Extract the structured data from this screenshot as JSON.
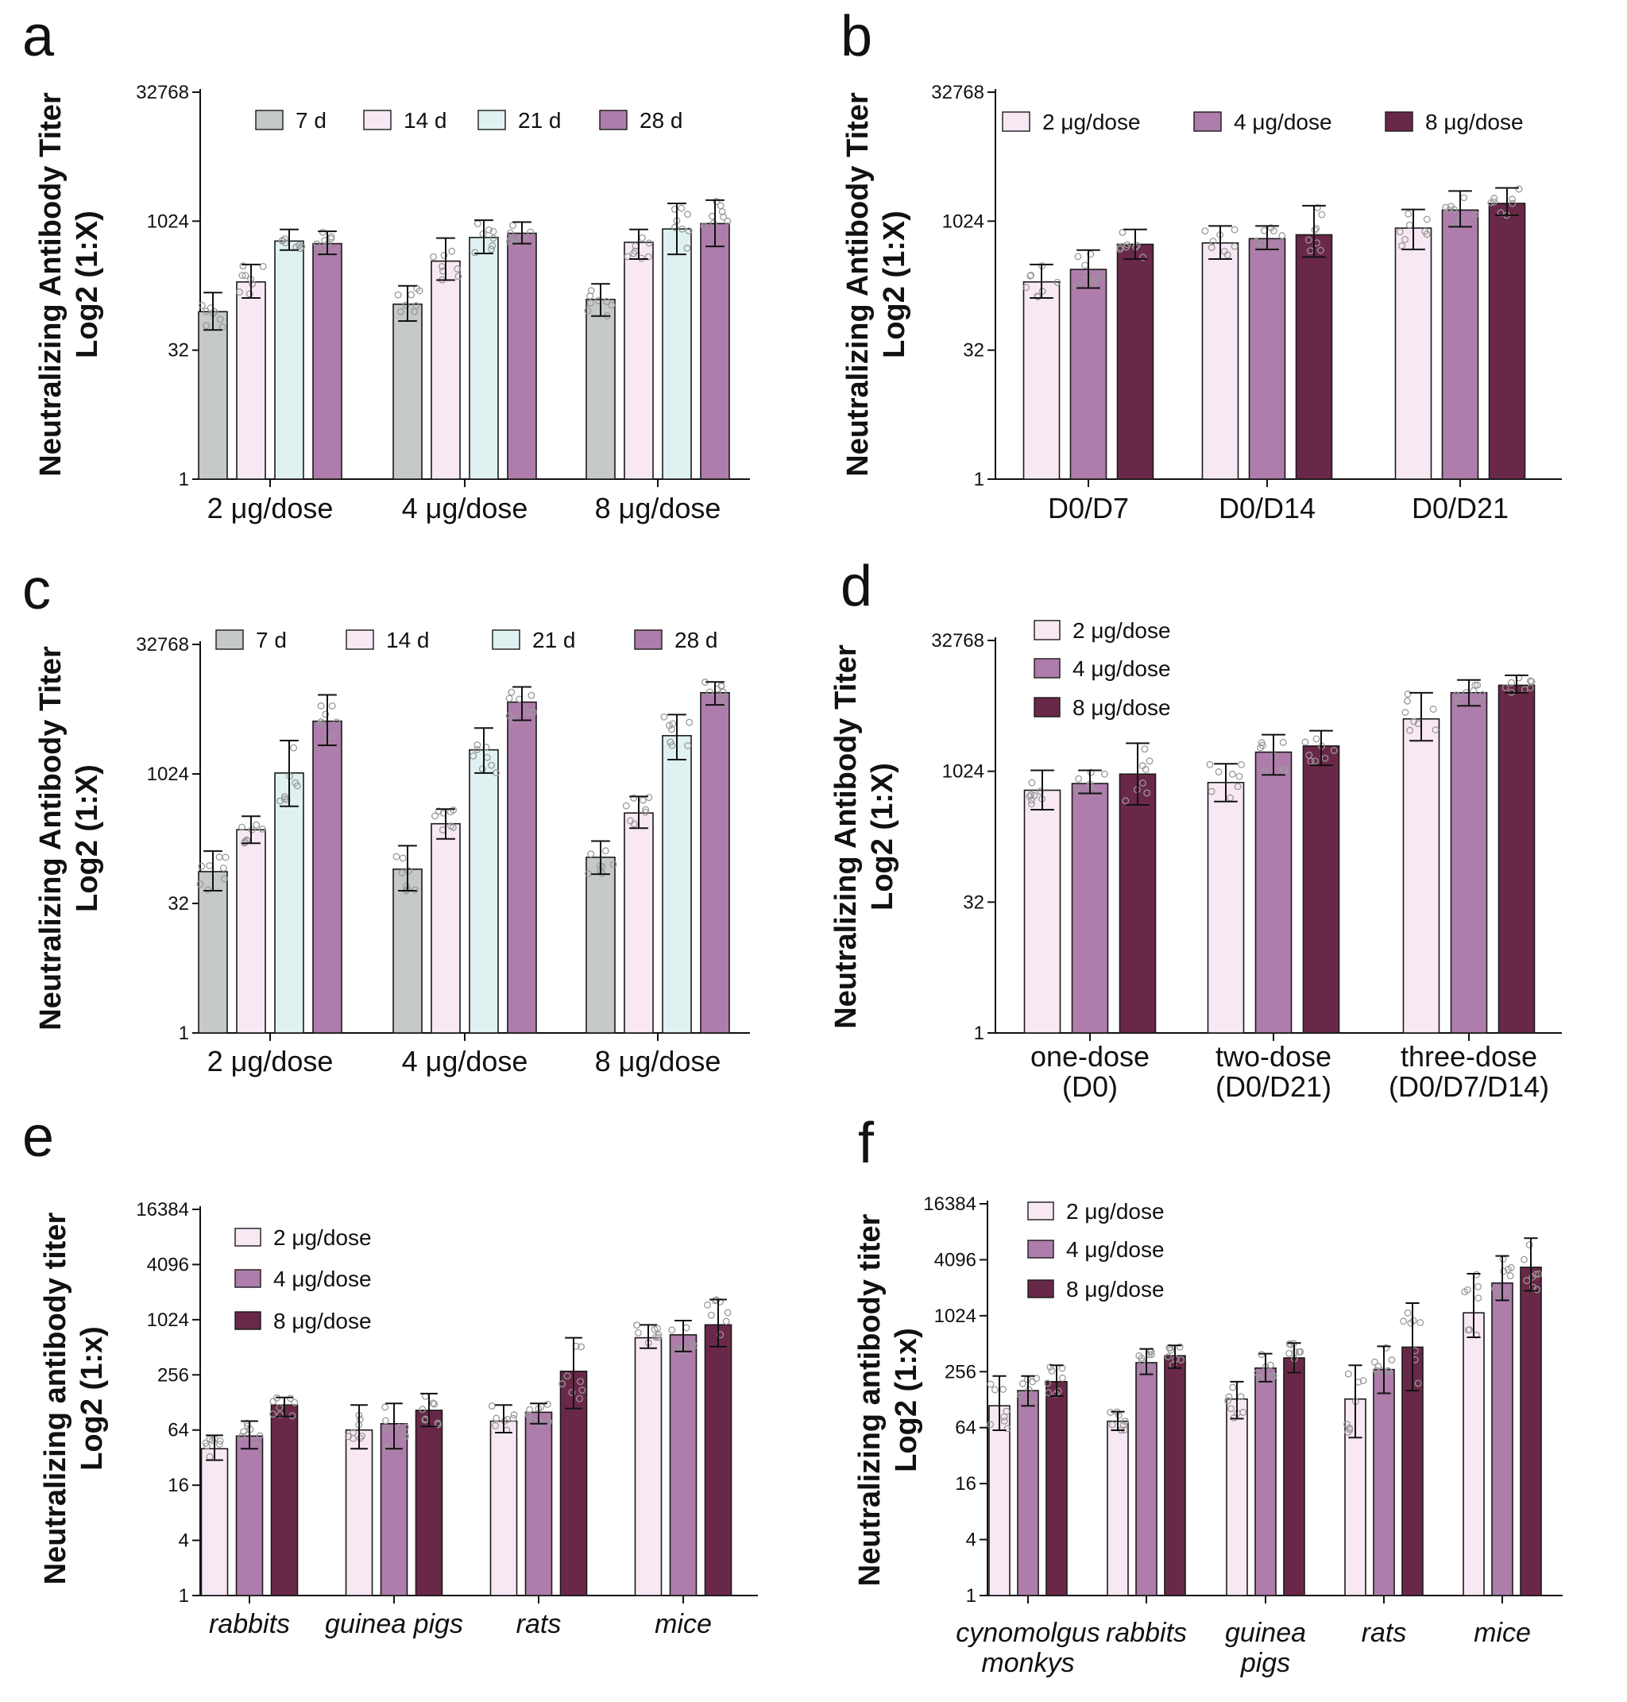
{
  "colors": {
    "gray": "#c5c9c8",
    "pale_pink": "#f8e8f4",
    "pale_cyan": "#dff1f1",
    "mauve": "#ae7dab",
    "maroon": "#6a2848",
    "axis": "#111111",
    "dot_stroke": "#999999"
  },
  "chart_data": [
    {
      "panel": "a",
      "type": "bar",
      "scale": "log2",
      "ylabel": [
        "Neutralizing Antibody Titer",
        "Log2 (1:X)"
      ],
      "yticks": [
        1,
        32,
        1024,
        32768
      ],
      "ylim": [
        1,
        32768
      ],
      "legend": "top",
      "categories": [
        "2 μg/dose",
        "4 μg/dose",
        "8 μg/dose"
      ],
      "series": [
        {
          "name": "7 d",
          "color": "gray",
          "values": [
            90,
            110,
            125
          ],
          "err": [
            [
              55,
              150
            ],
            [
              70,
              180
            ],
            [
              80,
              190
            ]
          ]
        },
        {
          "name": "14 d",
          "color": "pale_pink",
          "values": [
            200,
            350,
            580
          ],
          "err": [
            [
              130,
              320
            ],
            [
              210,
              650
            ],
            [
              370,
              820
            ]
          ]
        },
        {
          "name": "21 d",
          "color": "pale_cyan",
          "values": [
            600,
            660,
            830
          ],
          "err": [
            [
              470,
              820
            ],
            [
              430,
              1050
            ],
            [
              420,
              1650
            ]
          ]
        },
        {
          "name": "28 d",
          "color": "mauve",
          "values": [
            560,
            740,
            960
          ],
          "err": [
            [
              420,
              780
            ],
            [
              560,
              1000
            ],
            [
              520,
              1800
            ]
          ]
        }
      ]
    },
    {
      "panel": "b",
      "type": "bar",
      "scale": "log2",
      "ylabel": [
        "Neutralizing Antibody Titer",
        "Log2 (1:X)"
      ],
      "yticks": [
        1,
        32,
        1024,
        32768
      ],
      "ylim": [
        1,
        32768
      ],
      "legend": "top",
      "categories": [
        "D0/D7",
        "D0/D14",
        "D0/D21"
      ],
      "series": [
        {
          "name": "2 μg/dose",
          "color": "pale_pink",
          "values": [
            200,
            570,
            850
          ],
          "err": [
            [
              130,
              320
            ],
            [
              370,
              900
            ],
            [
              480,
              1400
            ]
          ]
        },
        {
          "name": "4 μg/dose",
          "color": "mauve",
          "values": [
            280,
            640,
            1380
          ],
          "err": [
            [
              170,
              470
            ],
            [
              480,
              900
            ],
            [
              880,
              2300
            ]
          ]
        },
        {
          "name": "8 μg/dose",
          "color": "maroon",
          "values": [
            550,
            710,
            1650
          ],
          "err": [
            [
              370,
              820
            ],
            [
              390,
              1550
            ],
            [
              1200,
              2500
            ]
          ]
        }
      ]
    },
    {
      "panel": "c",
      "type": "bar",
      "scale": "log2",
      "ylabel": [
        "Neutralizing Antibody Titer",
        "Log2 (1:X)"
      ],
      "yticks": [
        1,
        32,
        1024,
        32768
      ],
      "ylim": [
        1,
        32768
      ],
      "legend": "top",
      "categories": [
        "2 μg/dose",
        "4 μg/dose",
        "8 μg/dose"
      ],
      "series": [
        {
          "name": "7 d",
          "color": "gray",
          "values": [
            75,
            80,
            110
          ],
          "err": [
            [
              45,
              130
            ],
            [
              45,
              150
            ],
            [
              70,
              170
            ]
          ]
        },
        {
          "name": "14 d",
          "color": "pale_pink",
          "values": [
            230,
            270,
            360
          ],
          "err": [
            [
              160,
              330
            ],
            [
              180,
              400
            ],
            [
              240,
              560
            ]
          ]
        },
        {
          "name": "21 d",
          "color": "pale_cyan",
          "values": [
            1050,
            1950,
            2850
          ],
          "err": [
            [
              430,
              2500
            ],
            [
              1050,
              3500
            ],
            [
              1500,
              5000
            ]
          ]
        },
        {
          "name": "28 d",
          "color": "mauve",
          "values": [
            4200,
            7000,
            9000
          ],
          "err": [
            [
              2200,
              8500
            ],
            [
              4300,
              10500
            ],
            [
              6500,
              12000
            ]
          ]
        }
      ]
    },
    {
      "panel": "d",
      "type": "bar",
      "scale": "log2",
      "ylabel": [
        "Neutralizing Antibody Titer",
        "Log2 (1:X)"
      ],
      "yticks": [
        1,
        32,
        1024,
        32768
      ],
      "ylim": [
        1,
        32768
      ],
      "legend": "top-left",
      "categories": [
        "one-dose (D0)",
        "two-dose (D0/D21)",
        "three-dose (D0/D7/D14)"
      ],
      "category_lines": [
        [
          "one-dose",
          "(D0)"
        ],
        [
          "two-dose",
          "(D0/D21)"
        ],
        [
          "three-dose",
          "(D0/D7/D14)"
        ]
      ],
      "series": [
        {
          "name": "2 μg/dose",
          "color": "pale_pink",
          "values": [
            620,
            760,
            4100
          ],
          "err": [
            [
              370,
              1050
            ],
            [
              460,
              1250
            ],
            [
              2300,
              8200
            ]
          ]
        },
        {
          "name": "4 μg/dose",
          "color": "mauve",
          "values": [
            740,
            1700,
            8200
          ],
          "err": [
            [
              570,
              1050
            ],
            [
              930,
              2700
            ],
            [
              5800,
              11500
            ]
          ]
        },
        {
          "name": "8 μg/dose",
          "color": "maroon",
          "values": [
            950,
            2000,
            10000
          ],
          "err": [
            [
              420,
              2150
            ],
            [
              1200,
              3000
            ],
            [
              8200,
              13000
            ]
          ]
        }
      ]
    },
    {
      "panel": "e",
      "type": "bar",
      "scale": "log2",
      "ylabel": [
        "Neutralizing antibody titer",
        "Log2 (1:x)"
      ],
      "yticks": [
        1,
        4,
        16,
        64,
        256,
        1024,
        4096,
        16384
      ],
      "ylim": [
        1,
        16384
      ],
      "legend": "top-left",
      "categories": [
        "rabbits",
        "guinea pigs",
        "rats",
        "mice"
      ],
      "category_style": "italic",
      "series": [
        {
          "name": "2 μg/dose",
          "color": "pale_pink",
          "values": [
            40,
            64,
            80,
            650
          ],
          "err": [
            [
              30,
              56
            ],
            [
              40,
              120
            ],
            [
              60,
              120
            ],
            [
              500,
              900
            ]
          ]
        },
        {
          "name": "4 μg/dose",
          "color": "mauve",
          "values": [
            55,
            75,
            100,
            700
          ],
          "err": [
            [
              40,
              80
            ],
            [
              40,
              125
            ],
            [
              75,
              125
            ],
            [
              460,
              1000
            ]
          ]
        },
        {
          "name": "8 μg/dose",
          "color": "maroon",
          "values": [
            120,
            105,
            280,
            900
          ],
          "err": [
            [
              90,
              145
            ],
            [
              70,
              160
            ],
            [
              110,
              650
            ],
            [
              520,
              1700
            ]
          ]
        }
      ]
    },
    {
      "panel": "f",
      "type": "bar",
      "scale": "log2",
      "ylabel": [
        "Neutralizing antibody titer",
        "Log2 (1:x)"
      ],
      "yticks": [
        1,
        4,
        16,
        64,
        256,
        1024,
        4096,
        16384
      ],
      "ylim": [
        1,
        16384
      ],
      "legend": "top-left",
      "categories": [
        "cynomolgus monkys",
        "rabbits",
        "guinea pigs",
        "rats",
        "mice"
      ],
      "category_lines": [
        [
          "cynomolgus",
          "monkys"
        ],
        [
          "rabbits"
        ],
        [
          "guinea",
          "pigs"
        ],
        [
          "rats"
        ],
        [
          "mice"
        ]
      ],
      "category_style": "italic",
      "series": [
        {
          "name": "2 μg/dose",
          "color": "pale_pink",
          "values": [
            110,
            75,
            130,
            130,
            1100
          ],
          "err": [
            [
              60,
              230
            ],
            [
              60,
              95
            ],
            [
              80,
              200
            ],
            [
              50,
              300
            ],
            [
              600,
              2900
            ]
          ]
        },
        {
          "name": "4 μg/dose",
          "color": "mauve",
          "values": [
            160,
            320,
            280,
            270,
            2300
          ],
          "err": [
            [
              110,
              230
            ],
            [
              240,
              450
            ],
            [
              200,
              400
            ],
            [
              150,
              480
            ],
            [
              1500,
              4500
            ]
          ]
        },
        {
          "name": "8 μg/dose",
          "color": "maroon",
          "values": [
            200,
            380,
            360,
            470,
            3400
          ],
          "err": [
            [
              140,
              300
            ],
            [
              280,
              490
            ],
            [
              250,
              520
            ],
            [
              160,
              1400
            ],
            [
              1900,
              7000
            ]
          ]
        }
      ]
    }
  ]
}
